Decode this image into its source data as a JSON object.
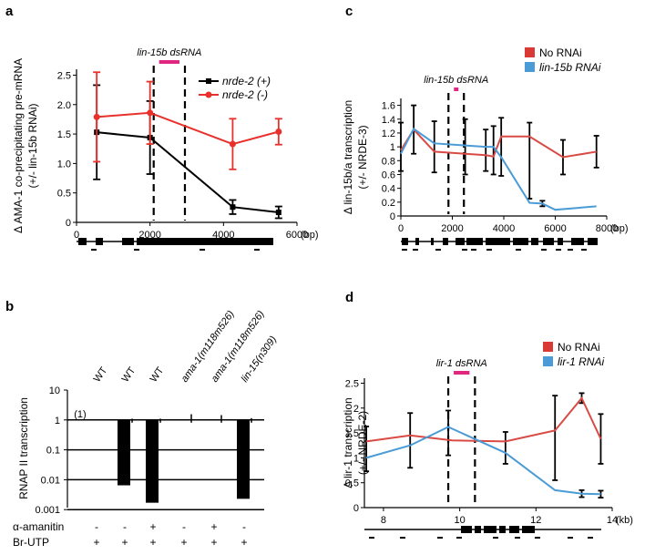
{
  "panel_labels": {
    "a": "a",
    "b": "b",
    "c": "c",
    "d": "d"
  },
  "colors": {
    "red": "#e8312b",
    "red_line": "#d94a45",
    "blue": "#4a9bd6",
    "magenta": "#e0267e",
    "black": "#000000",
    "legend_red": "#d93a35",
    "legend_blue": "#4a9bd6"
  },
  "chart_data": [
    {
      "panel": "a",
      "type": "line",
      "title": "",
      "ylabel_line1": "Δ AMA-1 co-precipitating pre-mRNA",
      "ylabel_line2": "(+/- lin-15b RNAi)",
      "xlabel": "(bp)",
      "xlim": [
        0,
        6000
      ],
      "ylim": [
        0,
        2.6
      ],
      "xticks": [
        0,
        2000,
        4000,
        6000
      ],
      "xtick_labels": [
        "0",
        "2000",
        "4000",
        "6000"
      ],
      "yticks": [
        0,
        0.5,
        1,
        1.5,
        2,
        2.5
      ],
      "ytick_labels": [
        "0",
        "0.5",
        "1.0",
        "1.5",
        "2.0",
        "2.5"
      ],
      "dsrna_label": "lin-15b dsRNA",
      "dsrna_range": [
        2100,
        2950
      ],
      "series": [
        {
          "name": "nrde-2 (+)",
          "color": "#000000",
          "x": [
            550,
            2000,
            4250,
            5500
          ],
          "y": [
            1.53,
            1.44,
            0.26,
            0.17
          ],
          "err": [
            0.8,
            0.62,
            0.12,
            0.1
          ]
        },
        {
          "name": "nrde-2 (-)",
          "color": "#e8312b",
          "x": [
            550,
            2000,
            4250,
            5500
          ],
          "y": [
            1.79,
            1.86,
            1.33,
            1.54
          ],
          "err": [
            0.76,
            0.53,
            0.43,
            0.22
          ]
        }
      ]
    },
    {
      "panel": "b",
      "type": "bar",
      "ylabel": "RNAP II transcription",
      "yscale": "log",
      "ylim": [
        0.001,
        10
      ],
      "yticks": [
        0.001,
        0.01,
        0.1,
        1,
        10
      ],
      "ytick_labels": [
        "0.001",
        "0.01",
        "0.1",
        "1",
        "10"
      ],
      "categories": [
        "WT",
        "WT",
        "WT",
        "ama-1(m118m526)",
        "ama-1(m118m526)",
        "lin-15(n309)"
      ],
      "values": [
        1,
        0.0065,
        0.0017,
        1,
        1,
        0.0023
      ],
      "err_high": [
        null,
        1.1,
        1.1,
        1.55,
        1.45,
        1.15
      ],
      "ref_label": "(1)",
      "treatments": [
        {
          "name": "α-amanitin",
          "values": [
            "-",
            "-",
            "+",
            "-",
            "+",
            "-"
          ]
        },
        {
          "name": "Br-UTP",
          "values": [
            "+",
            "+",
            "+",
            "+",
            "+",
            "+"
          ]
        }
      ]
    },
    {
      "panel": "c",
      "type": "line",
      "ylabel_line1": "Δ lin-15b/a transcription",
      "ylabel_line2": "(+/- NRDE-3)",
      "xlabel": "(bp)",
      "xlim": [
        0,
        8000
      ],
      "ylim": [
        0,
        1.7
      ],
      "xticks": [
        0,
        2000,
        4000,
        6000,
        8000
      ],
      "xtick_labels": [
        "0",
        "2000",
        "4000",
        "6000",
        "8000"
      ],
      "yticks": [
        0,
        0.2,
        0.4,
        0.6,
        0.8,
        1,
        1.2,
        1.4,
        1.6
      ],
      "ytick_labels": [
        "0",
        "0.2",
        "0.4",
        "0.6",
        "0.8",
        "1",
        "1.2",
        "1.4",
        "1.6"
      ],
      "dsrna_label": "lin-15b dsRNA",
      "dsrna_range": [
        1850,
        2450
      ],
      "series": [
        {
          "name": "No RNAi",
          "color": "#d94a45",
          "x": [
            0,
            500,
            1300,
            2500,
            3300,
            3600,
            3900,
            5000,
            6300,
            7600
          ],
          "y": [
            0.95,
            1.25,
            0.93,
            0.9,
            0.88,
            0.86,
            1.15,
            1.15,
            0.85,
            0.93
          ]
        },
        {
          "name": "lin-15b RNAi",
          "color": "#4a9bd6",
          "x": [
            0,
            500,
            1300,
            2500,
            3300,
            3600,
            3900,
            5000,
            5500,
            6000,
            7600
          ],
          "y": [
            0.9,
            1.26,
            1.05,
            1.02,
            1.0,
            1.0,
            0.85,
            0.19,
            0.18,
            0.09,
            0.14
          ]
        }
      ],
      "errorbars": [
        {
          "x": 0,
          "y": 1.0,
          "err": 0.35
        },
        {
          "x": 500,
          "y": 1.25,
          "err": 0.35
        },
        {
          "x": 1300,
          "y": 1.0,
          "err": 0.37
        },
        {
          "x": 2500,
          "y": 1.0,
          "err": 0.4
        },
        {
          "x": 3300,
          "y": 0.95,
          "err": 0.3
        },
        {
          "x": 3600,
          "y": 0.95,
          "err": 0.35
        },
        {
          "x": 3900,
          "y": 1.0,
          "err": 0.42
        },
        {
          "x": 5000,
          "y": 0.8,
          "err": 0.55
        },
        {
          "x": 5500,
          "y": 0.18,
          "err": 0.04
        },
        {
          "x": 6300,
          "y": 0.85,
          "err": 0.25
        },
        {
          "x": 7600,
          "y": 0.93,
          "err": 0.23
        }
      ]
    },
    {
      "panel": "d",
      "type": "line",
      "ylabel_line1": "Δ lir-1 transcription",
      "ylabel_line2": "(+/- NRDE-2)",
      "xlabel": "(kb)",
      "xlim": [
        7.5,
        14
      ],
      "ylim": [
        0,
        2.6
      ],
      "xticks": [
        8,
        10,
        12,
        14
      ],
      "xtick_labels": [
        "8",
        "10",
        "12",
        "14"
      ],
      "yticks": [
        0,
        0.5,
        1,
        1.5,
        2,
        2.5
      ],
      "ytick_labels": [
        "0",
        "0.5",
        "1",
        "1.5",
        "2",
        "2.5"
      ],
      "dsrna_label": "lir-1 dsRNA",
      "dsrna_range": [
        9.7,
        10.4
      ],
      "series": [
        {
          "name": "No RNAi",
          "color": "#d94a45",
          "x": [
            7.55,
            8.7,
            9.8,
            11.2,
            12.5,
            13.2,
            13.7
          ],
          "y": [
            1.33,
            1.45,
            1.35,
            1.33,
            1.55,
            2.2,
            1.38
          ]
        },
        {
          "name": "lir-1 RNAi",
          "color": "#4a9bd6",
          "x": [
            7.55,
            8.7,
            9.7,
            11.2,
            12.5,
            13.2,
            13.7
          ],
          "y": [
            1.0,
            1.25,
            1.62,
            1.1,
            0.35,
            0.28,
            0.27
          ]
        }
      ],
      "errorbars": [
        {
          "x": 7.55,
          "y": 1.18,
          "err": 0.45
        },
        {
          "x": 8.7,
          "y": 1.35,
          "err": 0.55
        },
        {
          "x": 9.7,
          "y": 1.5,
          "err": 0.45
        },
        {
          "x": 11.2,
          "y": 1.2,
          "err": 0.32
        },
        {
          "x": 12.5,
          "y": 1.4,
          "err": 0.85
        },
        {
          "x": 13.2,
          "y": 2.2,
          "err": 0.1
        },
        {
          "x": 13.7,
          "y": 1.38,
          "err": 0.5
        },
        {
          "x": 13.2,
          "y": 0.28,
          "err": 0.07
        },
        {
          "x": 13.7,
          "y": 0.27,
          "err": 0.07
        }
      ]
    }
  ]
}
